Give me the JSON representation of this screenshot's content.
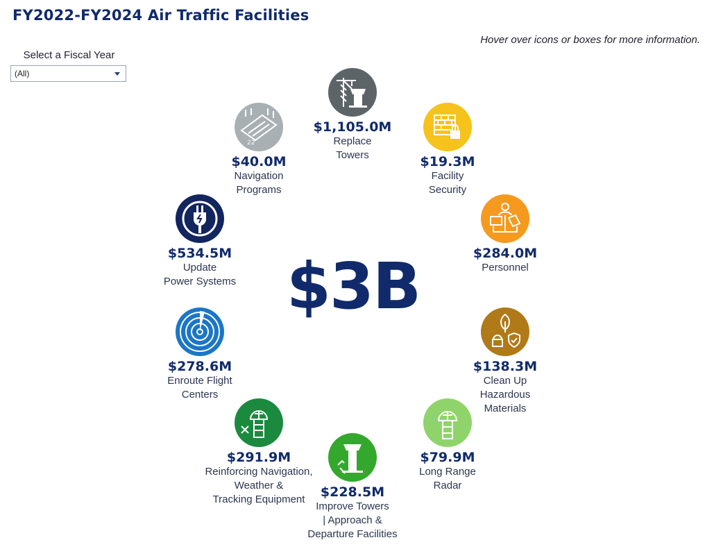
{
  "header": {
    "title": "FY2022-FY2024 Air Traffic Facilities",
    "hint": "Hover over icons or boxes for more information."
  },
  "filter": {
    "label": "Select a Fiscal Year",
    "selected": "(All)"
  },
  "total": "$3B",
  "colors": {
    "title": "#102a6b",
    "replace_towers": "#5d6468",
    "navigation_programs": "#a9b0b3",
    "facility_security": "#f6c31c",
    "update_power_systems": "#12255e",
    "personnel": "#f59a1f",
    "enroute_flight_centers": "#1b76c6",
    "clean_up_hazardous": "#b07a18",
    "reinforcing_navigation": "#1b8a3e",
    "long_range_radar": "#8fd46a",
    "improve_towers": "#33a82c"
  },
  "items": [
    {
      "amount": "$1,105.0M",
      "label": "Replace\nTowers",
      "icon": "control-tower-crane-icon"
    },
    {
      "amount": "$19.3M",
      "label": "Facility\nSecurity",
      "icon": "brick-wall-lock-icon"
    },
    {
      "amount": "$40.0M",
      "label": "Navigation\nPrograms",
      "icon": "runway-icon"
    },
    {
      "amount": "$284.0M",
      "label": "Personnel",
      "icon": "personnel-icon"
    },
    {
      "amount": "$534.5M",
      "label": "Update\nPower Systems",
      "icon": "power-plug-icon"
    },
    {
      "amount": "$278.6M",
      "label": "Enroute Flight\nCenters",
      "icon": "radar-sweep-icon"
    },
    {
      "amount": "$138.3M",
      "label": "Clean Up\nHazardous\nMaterials",
      "icon": "environment-shield-icon"
    },
    {
      "amount": "$291.9M",
      "label": "Reinforcing Navigation,\nWeather &\nTracking Equipment",
      "icon": "radome-tools-icon"
    },
    {
      "amount": "$79.9M",
      "label": "Long Range\nRadar",
      "icon": "radome-icon"
    },
    {
      "amount": "$228.5M",
      "label": "Improve Towers\n| Approach &\nDeparture Facilities",
      "icon": "tower-construction-icon"
    }
  ]
}
